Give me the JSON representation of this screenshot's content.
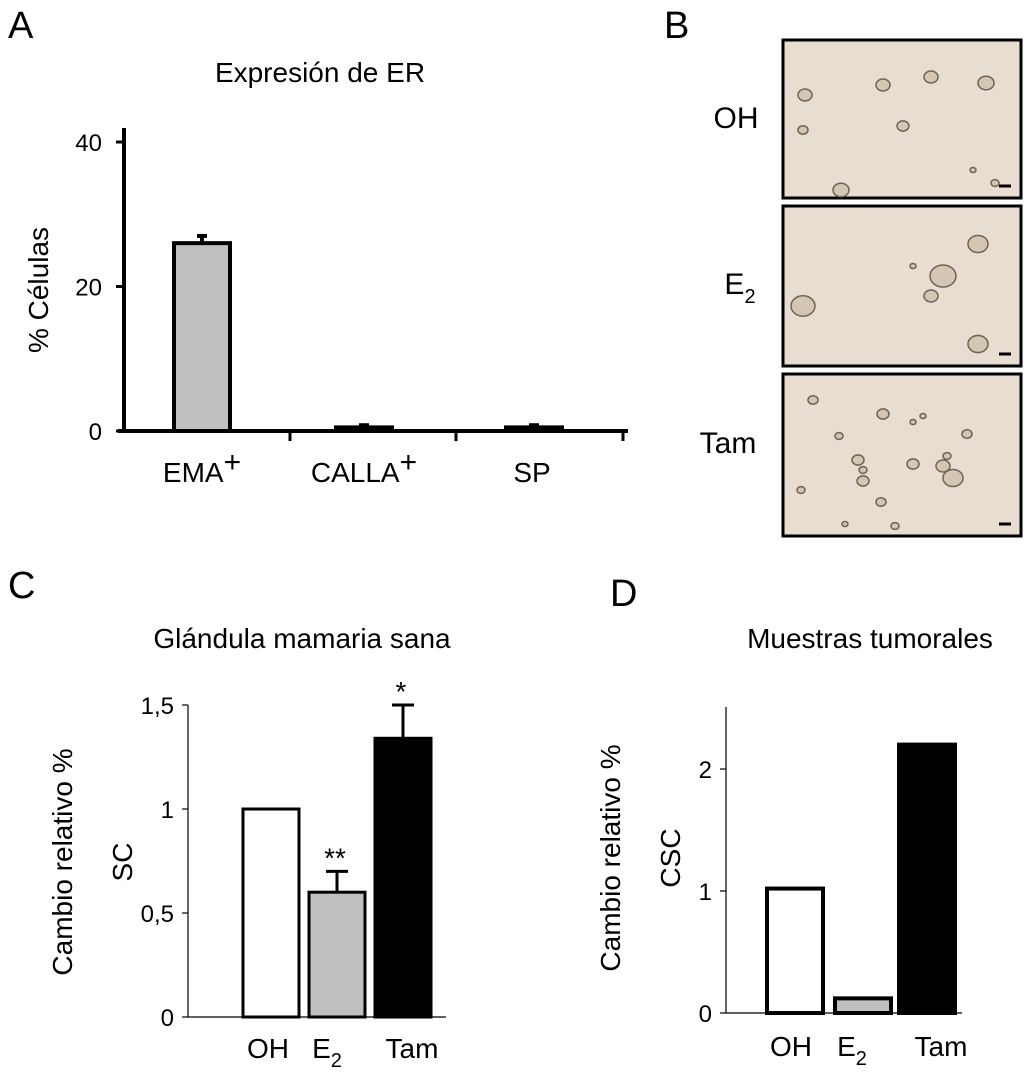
{
  "chart_data": [
    {
      "panel": "A",
      "type": "bar",
      "title": "Expresión de ER",
      "ylabel": "% Células",
      "categories": [
        "EMA",
        "CALLA",
        "SP"
      ],
      "category_superscripts": [
        "+",
        "+",
        ""
      ],
      "values": [
        26,
        0.5,
        0.5
      ],
      "errors": [
        1,
        0.3,
        0.3
      ],
      "colors": [
        "#c0c0c0",
        "#c0c0c0",
        "#000000"
      ],
      "yticks": [
        "0",
        "20",
        "40"
      ],
      "ylim": [
        0,
        42
      ]
    },
    {
      "panel": "C",
      "type": "bar",
      "title": "Glándula mamaria sana",
      "ylabel": "Cambio relativo % SC",
      "ylabel_lines": [
        "Cambio relativo %",
        "SC"
      ],
      "categories": [
        "OH",
        "E",
        "Tam"
      ],
      "category_subscripts": [
        "",
        "2",
        ""
      ],
      "values": [
        1.0,
        0.6,
        1.34
      ],
      "errors": [
        0,
        0.1,
        0.16
      ],
      "significance": [
        "",
        "**",
        "*"
      ],
      "colors": [
        "#ffffff",
        "#c0c0c0",
        "#000000"
      ],
      "yticks": [
        "0",
        "0,5",
        "1",
        "1,5"
      ],
      "ylim": [
        0,
        1.5
      ]
    },
    {
      "panel": "D",
      "type": "bar",
      "title": "Muestras tumorales",
      "ylabel": "Cambio relativo % CSC",
      "ylabel_lines": [
        "Cambio relativo %",
        "CSC"
      ],
      "categories": [
        "OH",
        "E",
        "Tam"
      ],
      "category_subscripts": [
        "",
        "2",
        ""
      ],
      "values": [
        1.02,
        0.12,
        2.2
      ],
      "colors": [
        "#ffffff",
        "#c0c0c0",
        "#000000"
      ],
      "yticks": [
        "0",
        "1",
        "2"
      ],
      "ylim": [
        0,
        2.5
      ]
    }
  ],
  "panels": {
    "a": "A",
    "b": "B",
    "c": "C",
    "d": "D"
  },
  "micrographs": {
    "labels": [
      "OH",
      "E",
      "Tam"
    ],
    "label_subscripts": [
      "",
      "2",
      ""
    ],
    "background": "#e7ddd0"
  }
}
